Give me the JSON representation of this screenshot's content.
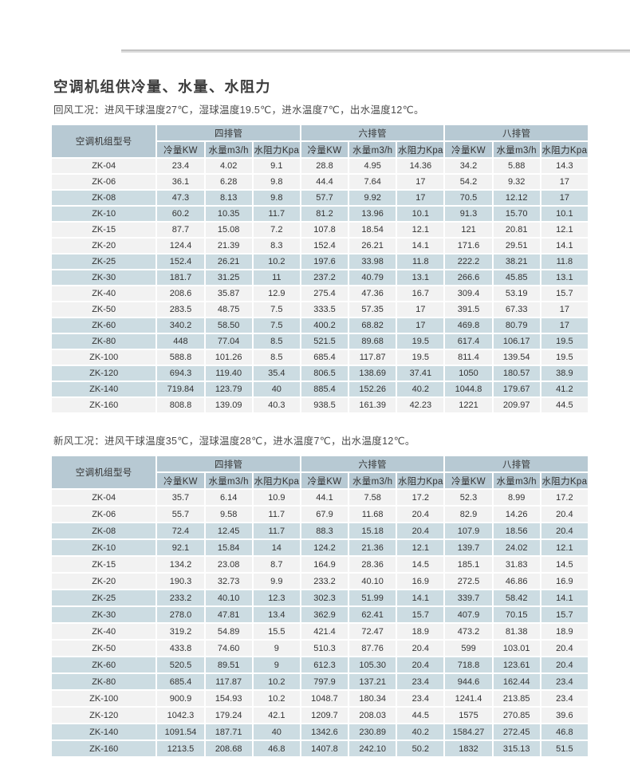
{
  "page": {
    "title": "空调机组供冷量、水量、水阻力"
  },
  "colors": {
    "header_bg": "#b7c9d3",
    "row_shaded_bg": "#ccdce2",
    "row_light_bg": "#f2f2f2",
    "text": "#3a3a3a",
    "divider": "#c6c6c6"
  },
  "tables": [
    {
      "condition": "回风工况：进风干球温度27℃，湿球温度19.5℃，进水温度7℃，出水温度12℃。",
      "model_header": "空调机组型号",
      "group_headers": [
        "四排管",
        "六排管",
        "八排管"
      ],
      "sub_headers": [
        "冷量KW",
        "水量m3/h",
        "水阻力Kpa"
      ],
      "row_shading": [
        0,
        0,
        1,
        1,
        0,
        0,
        1,
        1,
        0,
        0,
        1,
        1,
        0,
        1,
        1,
        0
      ],
      "rows": [
        {
          "model": "ZK-04",
          "values": [
            "23.4",
            "4.02",
            "9.1",
            "28.8",
            "4.95",
            "14.36",
            "34.2",
            "5.88",
            "14.3"
          ]
        },
        {
          "model": "ZK-06",
          "values": [
            "36.1",
            "6.28",
            "9.8",
            "44.4",
            "7.64",
            "17",
            "54.2",
            "9.32",
            "17"
          ]
        },
        {
          "model": "ZK-08",
          "values": [
            "47.3",
            "8.13",
            "9.8",
            "57.7",
            "9.92",
            "17",
            "70.5",
            "12.12",
            "17"
          ]
        },
        {
          "model": "ZK-10",
          "values": [
            "60.2",
            "10.35",
            "11.7",
            "81.2",
            "13.96",
            "10.1",
            "91.3",
            "15.70",
            "10.1"
          ]
        },
        {
          "model": "ZK-15",
          "values": [
            "87.7",
            "15.08",
            "7.2",
            "107.8",
            "18.54",
            "12.1",
            "121",
            "20.81",
            "12.1"
          ]
        },
        {
          "model": "ZK-20",
          "values": [
            "124.4",
            "21.39",
            "8.3",
            "152.4",
            "26.21",
            "14.1",
            "171.6",
            "29.51",
            "14.1"
          ]
        },
        {
          "model": "ZK-25",
          "values": [
            "152.4",
            "26.21",
            "10.2",
            "197.6",
            "33.98",
            "11.8",
            "222.2",
            "38.21",
            "11.8"
          ]
        },
        {
          "model": "ZK-30",
          "values": [
            "181.7",
            "31.25",
            "11",
            "237.2",
            "40.79",
            "13.1",
            "266.6",
            "45.85",
            "13.1"
          ]
        },
        {
          "model": "ZK-40",
          "values": [
            "208.6",
            "35.87",
            "12.9",
            "275.4",
            "47.36",
            "16.7",
            "309.4",
            "53.19",
            "15.7"
          ]
        },
        {
          "model": "ZK-50",
          "values": [
            "283.5",
            "48.75",
            "7.5",
            "333.5",
            "57.35",
            "17",
            "391.5",
            "67.33",
            "17"
          ]
        },
        {
          "model": "ZK-60",
          "values": [
            "340.2",
            "58.50",
            "7.5",
            "400.2",
            "68.82",
            "17",
            "469.8",
            "80.79",
            "17"
          ]
        },
        {
          "model": "ZK-80",
          "values": [
            "448",
            "77.04",
            "8.5",
            "521.5",
            "89.68",
            "19.5",
            "617.4",
            "106.17",
            "19.5"
          ]
        },
        {
          "model": "ZK-100",
          "values": [
            "588.8",
            "101.26",
            "8.5",
            "685.4",
            "117.87",
            "19.5",
            "811.4",
            "139.54",
            "19.5"
          ]
        },
        {
          "model": "ZK-120",
          "values": [
            "694.3",
            "119.40",
            "35.4",
            "806.5",
            "138.69",
            "37.41",
            "1050",
            "180.57",
            "38.9"
          ]
        },
        {
          "model": "ZK-140",
          "values": [
            "719.84",
            "123.79",
            "40",
            "885.4",
            "152.26",
            "40.2",
            "1044.8",
            "179.67",
            "41.2"
          ]
        },
        {
          "model": "ZK-160",
          "values": [
            "808.8",
            "139.09",
            "40.3",
            "938.5",
            "161.39",
            "42.23",
            "1221",
            "209.97",
            "44.5"
          ]
        }
      ]
    },
    {
      "condition": "新风工况：进风干球温度35℃，湿球温度28℃，进水温度7℃，出水温度12℃。",
      "model_header": "空调机组型号",
      "group_headers": [
        "四排管",
        "六排管",
        "八排管"
      ],
      "sub_headers": [
        "冷量KW",
        "水量m3/h",
        "水阻力Kpa"
      ],
      "row_shading": [
        0,
        0,
        1,
        1,
        0,
        0,
        1,
        1,
        0,
        0,
        1,
        1,
        0,
        0,
        1,
        1
      ],
      "rows": [
        {
          "model": "ZK-04",
          "values": [
            "35.7",
            "6.14",
            "10.9",
            "44.1",
            "7.58",
            "17.2",
            "52.3",
            "8.99",
            "17.2"
          ]
        },
        {
          "model": "ZK-06",
          "values": [
            "55.7",
            "9.58",
            "11.7",
            "67.9",
            "11.68",
            "20.4",
            "82.9",
            "14.26",
            "20.4"
          ]
        },
        {
          "model": "ZK-08",
          "values": [
            "72.4",
            "12.45",
            "11.7",
            "88.3",
            "15.18",
            "20.4",
            "107.9",
            "18.56",
            "20.4"
          ]
        },
        {
          "model": "ZK-10",
          "values": [
            "92.1",
            "15.84",
            "14",
            "124.2",
            "21.36",
            "12.1",
            "139.7",
            "24.02",
            "12.1"
          ]
        },
        {
          "model": "ZK-15",
          "values": [
            "134.2",
            "23.08",
            "8.7",
            "164.9",
            "28.36",
            "14.5",
            "185.1",
            "31.83",
            "14.5"
          ]
        },
        {
          "model": "ZK-20",
          "values": [
            "190.3",
            "32.73",
            "9.9",
            "233.2",
            "40.10",
            "16.9",
            "272.5",
            "46.86",
            "16.9"
          ]
        },
        {
          "model": "ZK-25",
          "values": [
            "233.2",
            "40.10",
            "12.3",
            "302.3",
            "51.99",
            "14.1",
            "339.7",
            "58.42",
            "14.1"
          ]
        },
        {
          "model": "ZK-30",
          "values": [
            "278.0",
            "47.81",
            "13.4",
            "362.9",
            "62.41",
            "15.7",
            "407.9",
            "70.15",
            "15.7"
          ]
        },
        {
          "model": "ZK-40",
          "values": [
            "319.2",
            "54.89",
            "15.5",
            "421.4",
            "72.47",
            "18.9",
            "473.2",
            "81.38",
            "18.9"
          ]
        },
        {
          "model": "ZK-50",
          "values": [
            "433.8",
            "74.60",
            "9",
            "510.3",
            "87.76",
            "20.4",
            "599",
            "103.01",
            "20.4"
          ]
        },
        {
          "model": "ZK-60",
          "values": [
            "520.5",
            "89.51",
            "9",
            "612.3",
            "105.30",
            "20.4",
            "718.8",
            "123.61",
            "20.4"
          ]
        },
        {
          "model": "ZK-80",
          "values": [
            "685.4",
            "117.87",
            "10.2",
            "797.9",
            "137.21",
            "23.4",
            "944.6",
            "162.44",
            "23.4"
          ]
        },
        {
          "model": "ZK-100",
          "values": [
            "900.9",
            "154.93",
            "10.2",
            "1048.7",
            "180.34",
            "23.4",
            "1241.4",
            "213.85",
            "23.4"
          ]
        },
        {
          "model": "ZK-120",
          "values": [
            "1042.3",
            "179.24",
            "42.1",
            "1209.7",
            "208.03",
            "44.5",
            "1575",
            "270.85",
            "39.6"
          ]
        },
        {
          "model": "ZK-140",
          "values": [
            "1091.54",
            "187.71",
            "40",
            "1342.6",
            "230.89",
            "40.2",
            "1584.27",
            "272.45",
            "46.8"
          ]
        },
        {
          "model": "ZK-160",
          "values": [
            "1213.5",
            "208.68",
            "46.8",
            "1407.8",
            "242.10",
            "50.2",
            "1832",
            "315.13",
            "51.5"
          ]
        }
      ]
    }
  ]
}
